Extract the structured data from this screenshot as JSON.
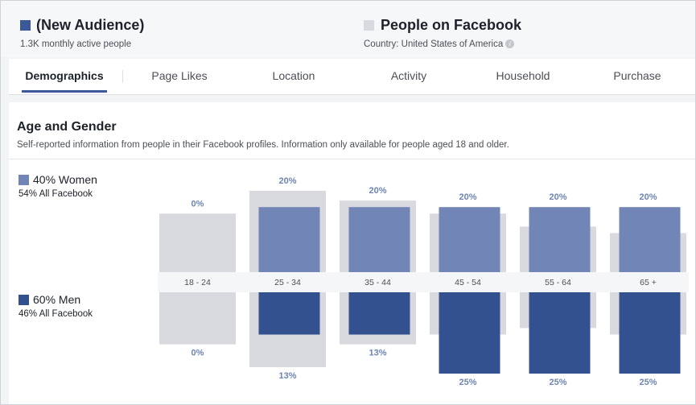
{
  "colors": {
    "women": "#7185b7",
    "men": "#33508f",
    "facebook": "#d8dadf",
    "text_blue": "#6d84b4"
  },
  "audience": {
    "name": "(New Audience)",
    "sub": "1.3K monthly active people"
  },
  "comparison": {
    "name": "People on Facebook",
    "sub": "Country: United States of America",
    "info_icon": "info-icon"
  },
  "tabs": [
    {
      "label": "Demographics"
    },
    {
      "label": "Page Likes"
    },
    {
      "label": "Location"
    },
    {
      "label": "Activity"
    },
    {
      "label": "Household"
    },
    {
      "label": "Purchase"
    }
  ],
  "section": {
    "title": "Age and Gender",
    "desc": "Self-reported information from people in their Facebook profiles. Information only available for people aged 18 and older."
  },
  "legend": {
    "women": {
      "label": "40% Women",
      "sub": "54% All Facebook"
    },
    "men": {
      "label": "60% Men",
      "sub": "46% All Facebook"
    }
  },
  "chart_data": {
    "type": "bar",
    "categories": [
      "18 - 24",
      "25 - 34",
      "35 - 44",
      "45 - 54",
      "55 - 64",
      "65 +"
    ],
    "series": [
      {
        "name": "Women",
        "values": [
          0,
          20,
          20,
          20,
          20,
          20
        ],
        "labels": [
          "0%",
          "20%",
          "20%",
          "20%",
          "20%",
          "20%"
        ]
      },
      {
        "name": "Men",
        "values": [
          0,
          13,
          13,
          25,
          25,
          25
        ],
        "labels": [
          "0%",
          "13%",
          "13%",
          "25%",
          "25%",
          "25%"
        ]
      }
    ],
    "facebook_women": [
      18,
      25,
      22,
      18,
      14,
      12
    ],
    "facebook_men": [
      16,
      23,
      16,
      13,
      11,
      13
    ],
    "scale_max": 25
  }
}
